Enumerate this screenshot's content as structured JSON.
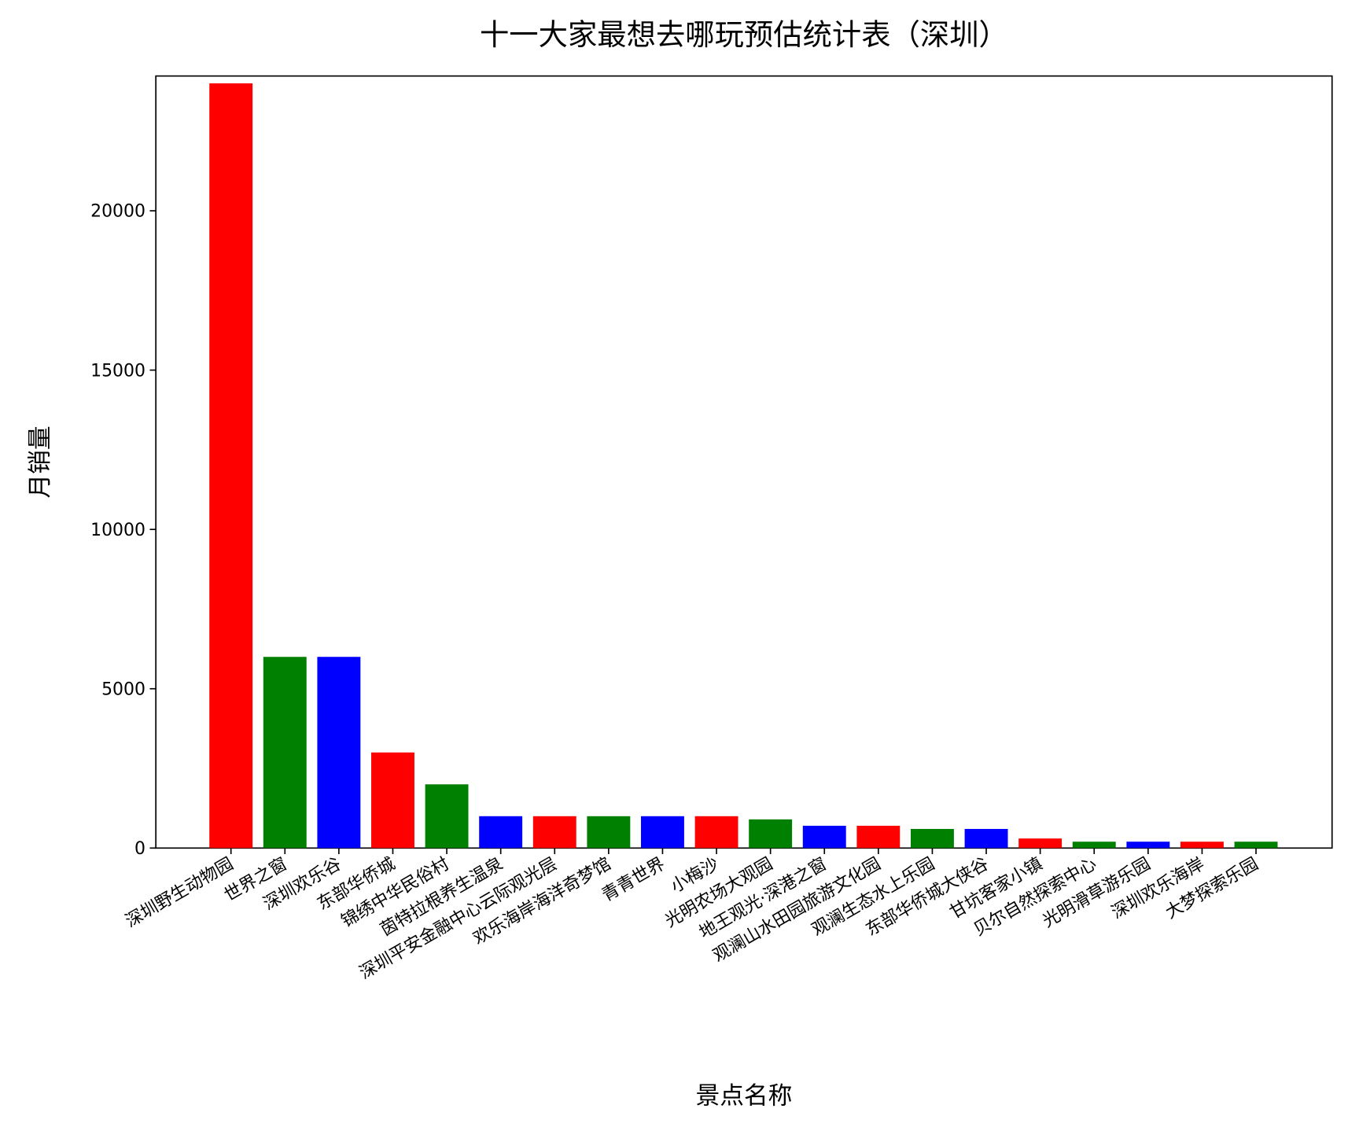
{
  "chart_data": {
    "type": "bar",
    "title": "十一大家最想去哪玩预估统计表（深圳）",
    "x_label": "景点名称",
    "y_label": "月销量",
    "categories": [
      "深圳野生动物园",
      "世界之窗",
      "深圳欢乐谷",
      "东部华侨城",
      "锦绣中华民俗村",
      "茵特拉根养生温泉",
      "深圳平安金融中心云际观光层",
      "欢乐海岸海洋奇梦馆",
      "青青世界",
      "小梅沙",
      "光明农场大观园",
      "地王观光·深港之窗",
      "观澜山水田园旅游文化园",
      "观澜生态水上乐园",
      "东部华侨城大侠谷",
      "甘坑客家小镇",
      "贝尔自然探索中心",
      "光明滑草游乐园",
      "深圳欢乐海岸",
      "大梦探索乐园"
    ],
    "values": [
      24000,
      6000,
      6000,
      3000,
      2000,
      1000,
      1000,
      1000,
      1000,
      1000,
      900,
      700,
      700,
      600,
      600,
      300,
      200,
      200,
      200,
      200
    ],
    "colors": [
      "red",
      "green",
      "blue"
    ],
    "ylim": [
      0,
      24230
    ],
    "yticks": [
      0,
      5000,
      10000,
      15000,
      20000
    ]
  }
}
